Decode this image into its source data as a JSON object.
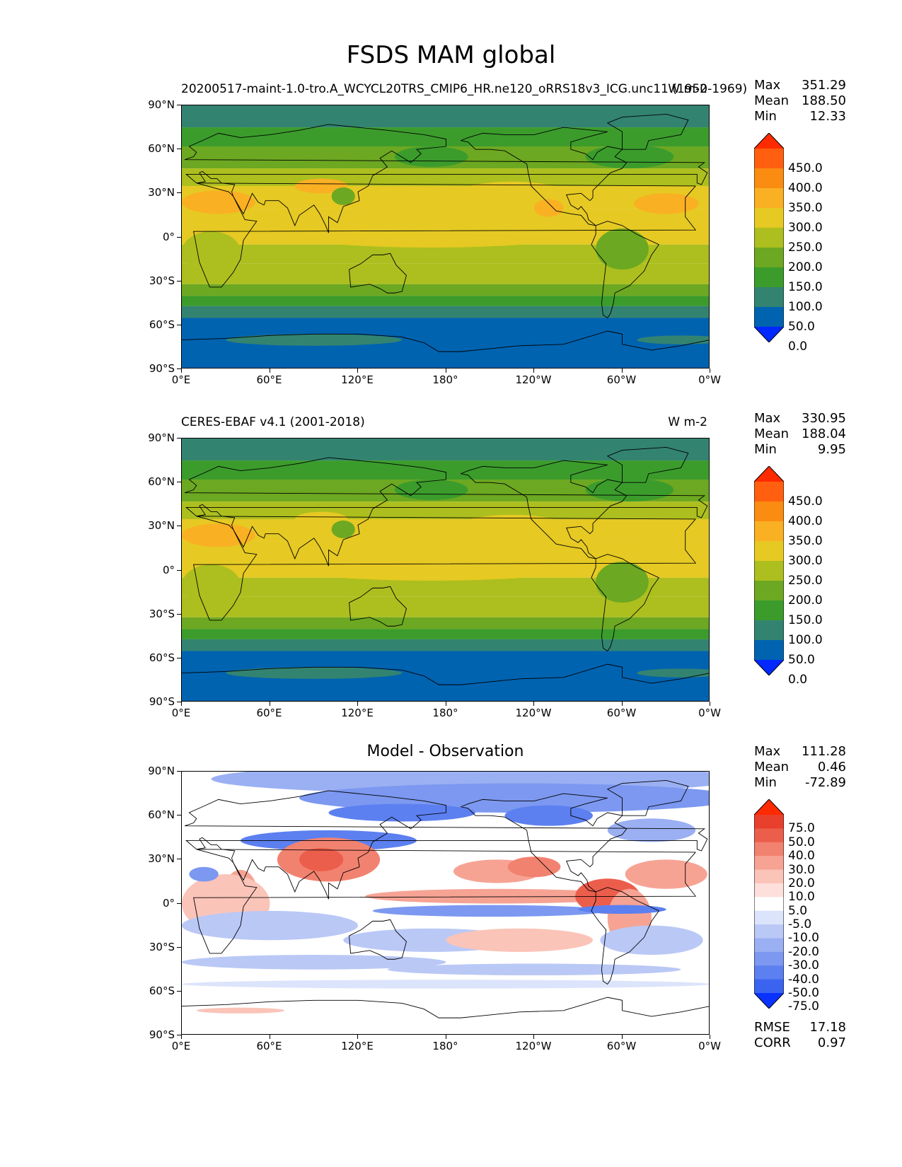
{
  "figure": {
    "title": "FSDS MAM global",
    "lat_ticks": [
      "90°N",
      "60°N",
      "30°N",
      "0°",
      "30°S",
      "60°S",
      "90°S"
    ],
    "lon_ticks": [
      "0°E",
      "60°E",
      "120°E",
      "180°",
      "120°W",
      "60°W",
      "0°W"
    ]
  },
  "panels": [
    {
      "id": "model",
      "title_left": "20200517-maint-1.0-tro.A_WCYCL20TRS_CMIP6_HR.ne120_oRRS18v3_ICG.unc11 (1950-1969)",
      "title_right": "W m-2",
      "stats": {
        "max_label": "Max",
        "max": "351.29",
        "mean_label": "Mean",
        "mean": "188.50",
        "min_label": "Min",
        "min": "12.33"
      },
      "colorbar_labels": [
        "450.0",
        "400.0",
        "350.0",
        "300.0",
        "250.0",
        "200.0",
        "150.0",
        "100.0",
        "50.0",
        "0.0"
      ]
    },
    {
      "id": "obs",
      "title_left": "CERES-EBAF v4.1 (2001-2018)",
      "title_right": "W m-2",
      "stats": {
        "max_label": "Max",
        "max": "330.95",
        "mean_label": "Mean",
        "mean": "188.04",
        "min_label": "Min",
        "min": "9.95"
      },
      "colorbar_labels": [
        "450.0",
        "400.0",
        "350.0",
        "300.0",
        "250.0",
        "200.0",
        "150.0",
        "100.0",
        "50.0",
        "0.0"
      ]
    },
    {
      "id": "diff",
      "title_center": "Model - Observation",
      "stats": {
        "max_label": "Max",
        "max": "111.28",
        "mean_label": "Mean",
        "mean": "0.46",
        "min_label": "Min",
        "min": "-72.89"
      },
      "colorbar_labels": [
        "75.0",
        "50.0",
        "40.0",
        "30.0",
        "20.0",
        "10.0",
        "5.0",
        "-5.0",
        "-10.0",
        "-20.0",
        "-30.0",
        "-40.0",
        "-50.0",
        "-75.0"
      ],
      "metrics": {
        "rmse_label": "RMSE",
        "rmse": "17.18",
        "corr_label": "CORR",
        "corr": "0.97"
      }
    }
  ],
  "colors": {
    "field_scale": [
      "#0028ff",
      "#0063b0",
      "#338371",
      "#3b9c2c",
      "#6ca821",
      "#acbf1e",
      "#e6c923",
      "#fab023",
      "#fb8c12",
      "#ff5f0f",
      "#ff2a00"
    ],
    "diff_scale": [
      "#0a32ff",
      "#3a64f0",
      "#5c80f0",
      "#7c98f0",
      "#9bb0f3",
      "#bac8f6",
      "#dce4fb",
      "#ffffff",
      "#fde0db",
      "#fbc4b8",
      "#f6a394",
      "#f28270",
      "#ec5e4c",
      "#e8402c",
      "#ff2a00"
    ],
    "coastline": "#000000"
  }
}
